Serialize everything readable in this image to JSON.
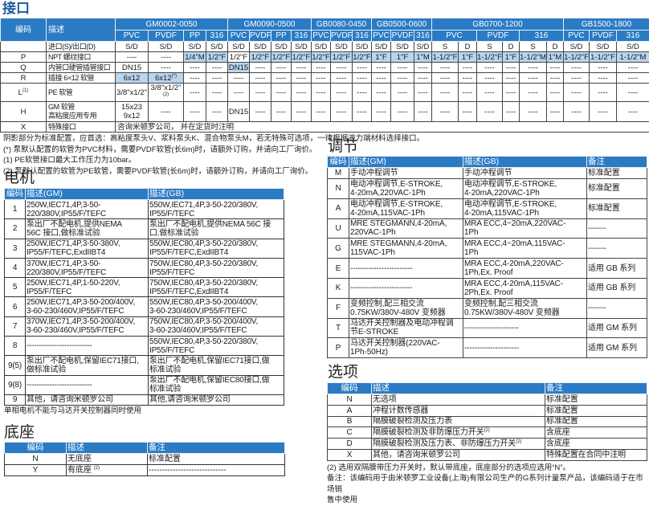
{
  "interface": {
    "title": "接口",
    "header": {
      "code": "编码",
      "desc": "描述",
      "groups": [
        {
          "name": "GM0002-0050",
          "subs": [
            "PVC",
            "PVDF",
            "PP",
            "316"
          ]
        },
        {
          "name": "GM0090-0500",
          "subs": [
            "PVC",
            "PVDF",
            "PP",
            "316"
          ]
        },
        {
          "name": "GB0080-0450",
          "subs": [
            "PVC",
            "PVDF",
            "316"
          ]
        },
        {
          "name": "GB0500-0600",
          "subs": [
            "PVC",
            "PVDF",
            "316"
          ]
        },
        {
          "name": "GB0700-1200",
          "subs": [
            "PVC",
            "PVDF",
            "316"
          ]
        },
        {
          "name": "GB1500-1800",
          "subs": [
            "PVC",
            "PVDF",
            "316"
          ]
        }
      ]
    },
    "rows": [
      {
        "code": "",
        "desc": "进口(S)/出口(D)",
        "cells": [
          "S/D",
          "S/D",
          "S/D",
          "S/D",
          "S/D",
          "S/D",
          "S/D",
          "S/D",
          "S/D",
          "S/D",
          "S/D",
          "S/D",
          "S/D",
          "S/D",
          "S",
          "D",
          "S",
          "D",
          "S",
          "D",
          "S/D",
          "S/D",
          "S/D"
        ]
      },
      {
        "code": "P",
        "desc": "NPT 螺纹接口",
        "cells": [
          "----",
          "----",
          {
            "text": "1/4\"M",
            "shaded": true
          },
          {
            "text": "1/2\"F",
            "shaded": true
          },
          "1/2\"F",
          {
            "text": "1/2\"F",
            "shaded": true
          },
          {
            "text": "1/2\"F",
            "shaded": true
          },
          {
            "text": "1/2\"F",
            "shaded": true
          },
          {
            "text": "1/2\"F",
            "shaded": true
          },
          {
            "text": "1/2\"F",
            "shaded": true
          },
          {
            "text": "1/2\"F",
            "shaded": true
          },
          {
            "text": "1\"F",
            "shaded": true
          },
          {
            "text": "1\"F",
            "shaded": true
          },
          {
            "text": "1\"M",
            "shaded": true
          },
          {
            "text": "1-1/2\"F",
            "shaded": true
          },
          {
            "text": "1\"F",
            "shaded": true
          },
          {
            "text": "1-1/2\"F",
            "shaded": true
          },
          {
            "text": "1\"F",
            "shaded": true
          },
          {
            "text": "1-1/2\"M",
            "shaded": true
          },
          {
            "text": "1\"M",
            "shaded": true
          },
          {
            "text": "1-1/2\"F",
            "shaded": true
          },
          {
            "text": "1-1/2\"F",
            "shaded": true
          },
          {
            "text": "1-1/2\"M",
            "shaded": true
          }
        ]
      },
      {
        "code": "Q",
        "desc": "内管口硬管插管接口",
        "cells": [
          "DN15",
          "----",
          "----",
          "----",
          {
            "text": "DN15",
            "shaded": true
          },
          "----",
          "----",
          "----",
          "----",
          "----",
          "----",
          "----",
          "----",
          "----",
          "----",
          "----",
          "----",
          "----",
          "----",
          "----",
          "----",
          "----",
          "----"
        ]
      },
      {
        "code": "R",
        "desc": "插接 6×12 软管",
        "cells": [
          {
            "text": "6x12",
            "shaded": true
          },
          {
            "text": "6x12",
            "sup": "(*)",
            "shaded": true
          },
          "----",
          "----",
          "----",
          "----",
          "----",
          "----",
          "----",
          "----",
          "----",
          "----",
          "----",
          "----",
          "----",
          "----",
          "----",
          "----",
          "----",
          "----",
          "----",
          "----",
          "----"
        ]
      },
      {
        "code": "L",
        "code_sup": "(1)",
        "desc": "PE 软管",
        "cells": [
          "3/8\"x1/2\"",
          {
            "text": "3/8\"x1/2\"",
            "sup": "(2)"
          },
          "----",
          "----",
          "----",
          "----",
          "----",
          "----",
          "----",
          "----",
          "----",
          "----",
          "----",
          "----",
          "----",
          "----",
          "----",
          "----",
          "----",
          "----",
          "----",
          "----",
          "----"
        ]
      },
      {
        "code": "H",
        "desc": "GM 软管\n高粘度应用专用",
        "cells": [
          "15x23\n9x12",
          "----",
          "----",
          "----",
          "DN15",
          "----",
          "----",
          "----",
          "----",
          "----",
          "----",
          "----",
          "----",
          "----",
          "----",
          "----",
          "----",
          "----",
          "----",
          "----",
          "----",
          "----",
          "----"
        ]
      },
      {
        "code": "X",
        "desc": "特殊接口",
        "merged": "咨询米顿罗公司， 并在定货时注明"
      }
    ],
    "notes": [
      "阴影部分为标准配置，应首选：高粘度泵头V、浆料泵头K、混合物泵头M，若无特殊可选项，一律根据液力端材料选择接口。",
      "(*) 泵默认配置的软管为PVC材料，需要PVDF软管(长6m)时，请额外订购，并请向工厂询价。",
      "(1) PE软管接口最大工作压力为10bar。",
      "(2) 泵默认配置的软管为PE软管，需要PVDF软管(长6m)时，请额外订购，并请向工厂询价。"
    ]
  },
  "motor": {
    "title": "电机",
    "headers": [
      "编码",
      "描述(GM)",
      "描述(GB)"
    ],
    "rows": [
      [
        "1",
        "250W,IEC71,4P,3-50-\n220/380V,IP55/F/TEFC",
        "550W,IEC71,4P,3-50-220/380V,\nIP55/F/TEFC"
      ],
      [
        "2",
        "泵出厂不配电机,提供NEMA\n56C 接口,做标准试验",
        "泵出厂不配电机,提供NEMA 56C 接\n口,做标准试验"
      ],
      [
        "3",
        "250W,IEC71,4P,3-50-380V,\nIP55/F/TEFC,ExdIIBT4",
        "550W,IEC80,4P,3-50-220/380V,\nIP55/F/TEFC,ExdIIBT4"
      ],
      [
        "4",
        "370W,IEC71,4P,3-50-\n220/380V,IP55/F/TEFC",
        "750W,IEC80,4P,3-50-220/380V,\nIP55/F/TEFC"
      ],
      [
        "5",
        "250W,IEC71,4P,1-50-220V,\nIP55/F/TEFC",
        "750W,IEC80,4P,3-50-220/380V,\nIP55/F/TEFC,ExdIIBT4"
      ],
      [
        "6",
        "250W,IEC71,4P,3-50-200/400V,\n3-60-230/460V,IP55/F/TEFC",
        "550W,IEC80,4P,3-50-200/400V,\n3-60-230/460V,IP55/F/TEFC"
      ],
      [
        "7",
        "370W,IEC71,4P,3-50-200/400V,\n3-60-230/460V,IP55/F/TEFC",
        "750W,IEC80,4P,3-50-200/400V,\n3-60-230/460V,IP55/F/TEFC"
      ],
      [
        "8",
        "--------------------------",
        "550W,IEC80,4P,3-50-220/380V,\nIP55/F/TEFC"
      ],
      [
        "9(5)",
        "泵出厂不配电机,保留IEC71接口,\n做标准试验",
        "泵出厂不配电机,保留IEC71接口,做\n标准试验"
      ],
      [
        "9(8)",
        "--------------------------",
        "泵出厂不配电机,保留IEC80接口,做\n标准试验"
      ],
      [
        "9",
        "其他，请咨询米顿罗公司",
        "其他,请咨询米顿罗公司"
      ]
    ],
    "note": "单相电机不能与马达开关控制器同时使用"
  },
  "base": {
    "title": "底座",
    "headers": [
      "编码",
      "描述",
      "备注"
    ],
    "rows": [
      [
        "N",
        "无底座",
        "标准配置"
      ],
      [
        "Y",
        {
          "text": "有底座 ",
          "sup": "(2)"
        },
        "-----------------------------"
      ]
    ]
  },
  "adjust": {
    "title": "调节",
    "headers": [
      "编码",
      "描述(GM)",
      "描述(GB)",
      "备注"
    ],
    "rows": [
      [
        "M",
        "手动冲程调节",
        "手动冲程调节",
        "标准配置"
      ],
      [
        "N",
        "电动冲程调节,E-STROKE,\n4-20mA,220VAC-1Ph",
        "电动冲程调节,E-STROKE,\n4-20mA,220VAC-1Ph",
        "标准配置"
      ],
      [
        "A",
        "电动冲程调节,E-STROKE,\n4-20mA,115VAC-1Ph",
        "电动冲程调节,E-STROKE,\n4-20mA,115VAC-1Ph",
        "标准配置"
      ],
      [
        "U",
        "MRE STEGMANN,4-20mA,\n220VAC-1Ph",
        "MRA ECC,4~20mA,220VAC-\n1Ph",
        "-------"
      ],
      [
        "G",
        "MRE STEGMANN,4-20mA,\n115VAC-1Ph",
        "MRA ECC,4~20mA,115VAC-\n1Ph",
        "-------"
      ],
      [
        "E",
        "------------------------",
        "MRA ECC,4-20mA,220VAC-\n1Ph,Ex. Proof",
        "适用 GB 系列"
      ],
      [
        "K",
        "------------------------",
        "MRA ECC,4-20mA,115VAC-\n2Ph,Ex. Proof",
        "适用 GB 系列"
      ],
      [
        "F",
        "变频控制,配三相交流\n0.75KW/380V-480V 变频器",
        "变频控制,配三相交流\n0.75KW/380V-480V 变频器",
        "-------"
      ],
      [
        "T",
        "马达开关控制器及电动冲程调\n节E-STROKE",
        "---------------------",
        "适用 GM 系列"
      ],
      [
        "P",
        "马达开关控制器(220VAC-\n1Ph-50Hz)",
        "---------------------",
        "适用 GM 系列"
      ]
    ]
  },
  "options": {
    "title": "选项",
    "headers": [
      "编码",
      "描述",
      "备注"
    ],
    "rows": [
      [
        "N",
        "无选项",
        "标准配置"
      ],
      [
        "A",
        "冲程计数传感器",
        "标准配置"
      ],
      [
        "B",
        "隔膜破裂检测及压力表",
        "标准配置"
      ],
      [
        "C",
        {
          "text": "隔膜破裂检测及非防爆压力开关",
          "sup": "(2)"
        },
        "含底座"
      ],
      [
        "D",
        {
          "text": "隔膜破裂检测及压力表、非防爆压力开关",
          "sup": "(2)"
        },
        "含底座"
      ],
      [
        "X",
        "其他，请咨询米顿罗公司",
        "特殊配置在合同中注明"
      ]
    ],
    "notes": [
      "(2) 选用双隔膜带压力开关时，默认带底座，底座部分的选项应选用“N”。",
      "备注：该编码用于由米顿罗工业设备(上海)有限公司生产的G系列计量泵产品，该编码适于在市场销",
      "售中使用"
    ]
  },
  "colors": {
    "header_blue": "#2b7bc4",
    "shade_blue": "#b9d5ef"
  }
}
